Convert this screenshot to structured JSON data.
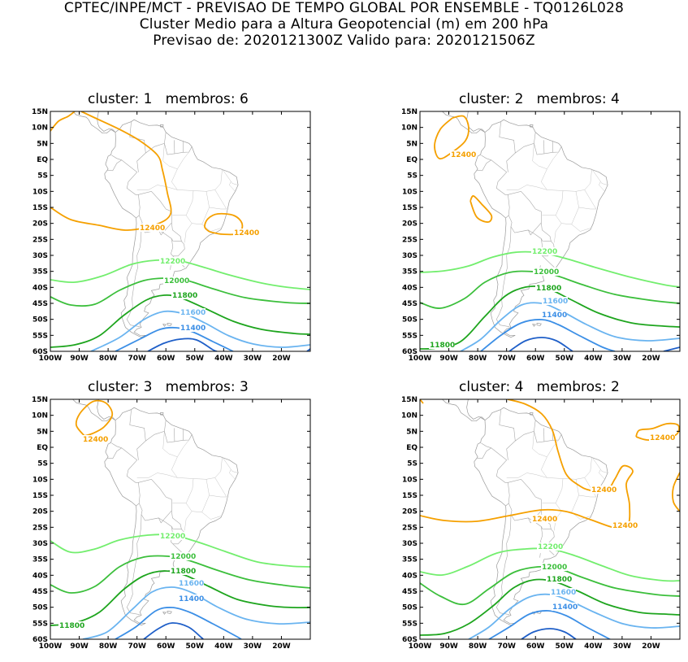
{
  "header": {
    "line1": "CPTEC/INPE/MCT - PREVISAO DE TEMPO GLOBAL POR ENSEMBLE - TQ0126L028",
    "line2": "Cluster Medio para a Altura Geopotencial (m) em 200 hPa",
    "line3": "Previsao de: 2020121300Z   Valido para: 2020121506Z"
  },
  "axes": {
    "lat_labels": [
      "15N",
      "10N",
      "5N",
      "EQ",
      "5S",
      "10S",
      "15S",
      "20S",
      "25S",
      "30S",
      "35S",
      "40S",
      "45S",
      "50S",
      "55S",
      "60S"
    ],
    "lon_labels": [
      "100W",
      "90W",
      "80W",
      "70W",
      "60W",
      "50W",
      "40W",
      "30W",
      "20W"
    ]
  },
  "colors": {
    "c12400": "#f5a000",
    "c12200": "#73ee6e",
    "c12000": "#3cbf3c",
    "c11800": "#1ea51e",
    "c11600": "#6ab4f0",
    "c11400": "#3c8fe6",
    "c11200": "#1f5fc8",
    "coast": "#9a9a9a"
  },
  "panels": [
    {
      "title": "cluster: 1   membros: 6",
      "labels": {
        "a": "12400",
        "b": "12400",
        "c": "12200",
        "d": "12000",
        "e": "11800",
        "f": "11600",
        "g": "11400"
      }
    },
    {
      "title": "cluster: 2   membros: 4",
      "labels": {
        "a": "12400",
        "c": "12200",
        "d": "12000",
        "e": "11800",
        "f": "11600",
        "g": "11400",
        "h": "11800"
      }
    },
    {
      "title": "cluster: 3   membros: 3",
      "labels": {
        "a": "12400",
        "c": "12200",
        "d": "12000",
        "e": "11800",
        "f": "11600",
        "g": "11400",
        "h": "11800"
      }
    },
    {
      "title": "cluster: 4   membros: 2",
      "labels": {
        "a": "12400",
        "b": "12400",
        "i": "12400",
        "j": "12400",
        "c": "12200",
        "d": "12000",
        "e": "11800",
        "f": "11600",
        "g": "11400"
      }
    }
  ]
}
